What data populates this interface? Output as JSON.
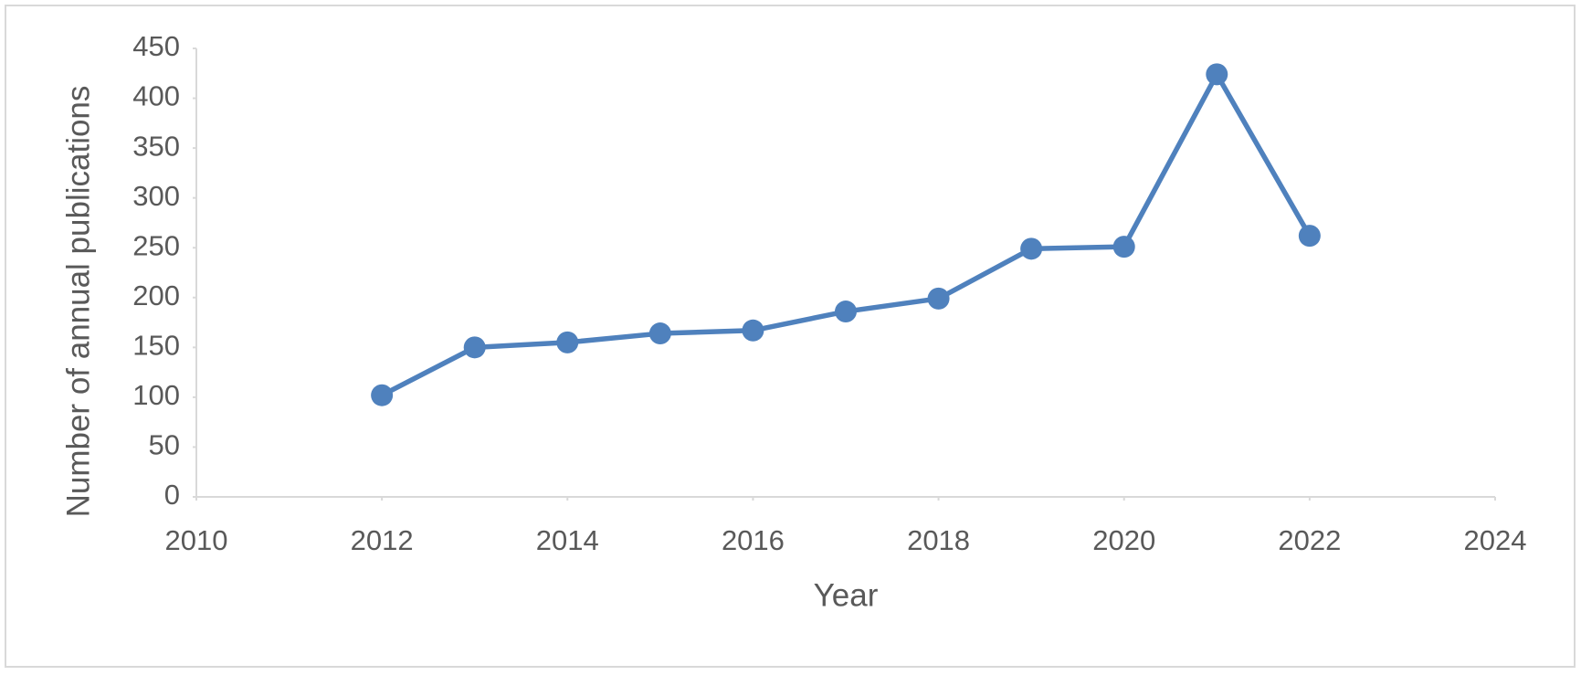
{
  "chart_data": {
    "type": "line",
    "x_label": "Year",
    "y_label": "Number of annual publications",
    "x": [
      2012,
      2013,
      2014,
      2015,
      2016,
      2017,
      2018,
      2019,
      2020,
      2021,
      2022
    ],
    "values": [
      102,
      150,
      155,
      164,
      167,
      186,
      199,
      249,
      251,
      424,
      262
    ],
    "color": "#4f81bd",
    "xlim": [
      2010,
      2024
    ],
    "xticks": [
      2010,
      2012,
      2014,
      2016,
      2018,
      2020,
      2022,
      2024
    ],
    "ylim": [
      0,
      450
    ],
    "yticks": [
      0,
      50,
      100,
      150,
      200,
      250,
      300,
      350,
      400,
      450
    ],
    "grid": false,
    "markers": true
  }
}
